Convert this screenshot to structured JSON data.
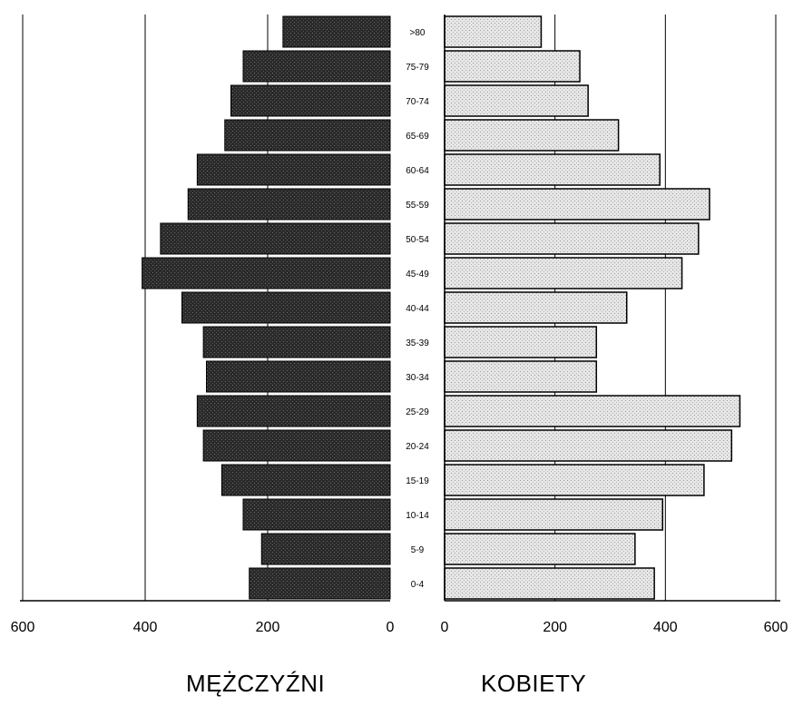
{
  "chart_data": {
    "type": "bar",
    "subtype": "population-pyramid",
    "categories": [
      "0-4",
      "5-9",
      "10-14",
      "15-19",
      "20-24",
      "25-29",
      "30-34",
      "35-39",
      "40-44",
      "45-49",
      "50-54",
      "55-59",
      "60-64",
      "65-69",
      "70-74",
      "75-79",
      ">80"
    ],
    "series": [
      {
        "name": "MĘŻCZYŹNI",
        "side": "left",
        "values": [
          230,
          210,
          240,
          275,
          305,
          315,
          300,
          305,
          340,
          405,
          375,
          330,
          315,
          270,
          260,
          240,
          175
        ]
      },
      {
        "name": "KOBIETY",
        "side": "right",
        "values": [
          380,
          345,
          395,
          470,
          520,
          535,
          275,
          275,
          330,
          430,
          460,
          480,
          390,
          315,
          260,
          245,
          175
        ]
      }
    ],
    "left_axis": {
      "ticks": [
        "600",
        "400",
        "200",
        "0"
      ],
      "range": [
        0,
        600
      ]
    },
    "right_axis": {
      "ticks": [
        "0",
        "200",
        "400",
        "600"
      ],
      "range": [
        0,
        600
      ]
    },
    "grid": "vertical",
    "colors": {
      "male_fill": "#262626",
      "female_fill": "#e0e0e0",
      "bar_edge": "#000000",
      "grid": "#000000"
    }
  }
}
